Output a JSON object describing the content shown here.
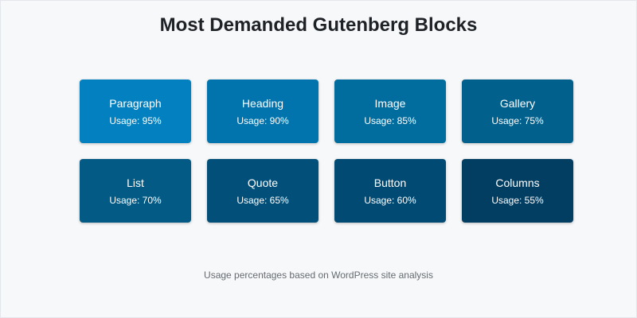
{
  "title": "Most Demanded Gutenberg Blocks",
  "blocks": [
    {
      "name": "Paragraph",
      "usage_label": "Usage: 95%",
      "usage": 95,
      "color": "#0280bf"
    },
    {
      "name": "Heading",
      "usage_label": "Usage: 90%",
      "usage": 90,
      "color": "#0274ad"
    },
    {
      "name": "Image",
      "usage_label": "Usage: 85%",
      "usage": 85,
      "color": "#016d9f"
    },
    {
      "name": "Gallery",
      "usage_label": "Usage: 75%",
      "usage": 75,
      "color": "#02608c"
    },
    {
      "name": "List",
      "usage_label": "Usage: 70%",
      "usage": 70,
      "color": "#025a85"
    },
    {
      "name": "Quote",
      "usage_label": "Usage: 65%",
      "usage": 65,
      "color": "#02507a"
    },
    {
      "name": "Button",
      "usage_label": "Usage: 60%",
      "usage": 60,
      "color": "#004a73"
    },
    {
      "name": "Columns",
      "usage_label": "Usage: 55%",
      "usage": 55,
      "color": "#023e62"
    }
  ],
  "footnote": "Usage percentages based on WordPress site analysis"
}
